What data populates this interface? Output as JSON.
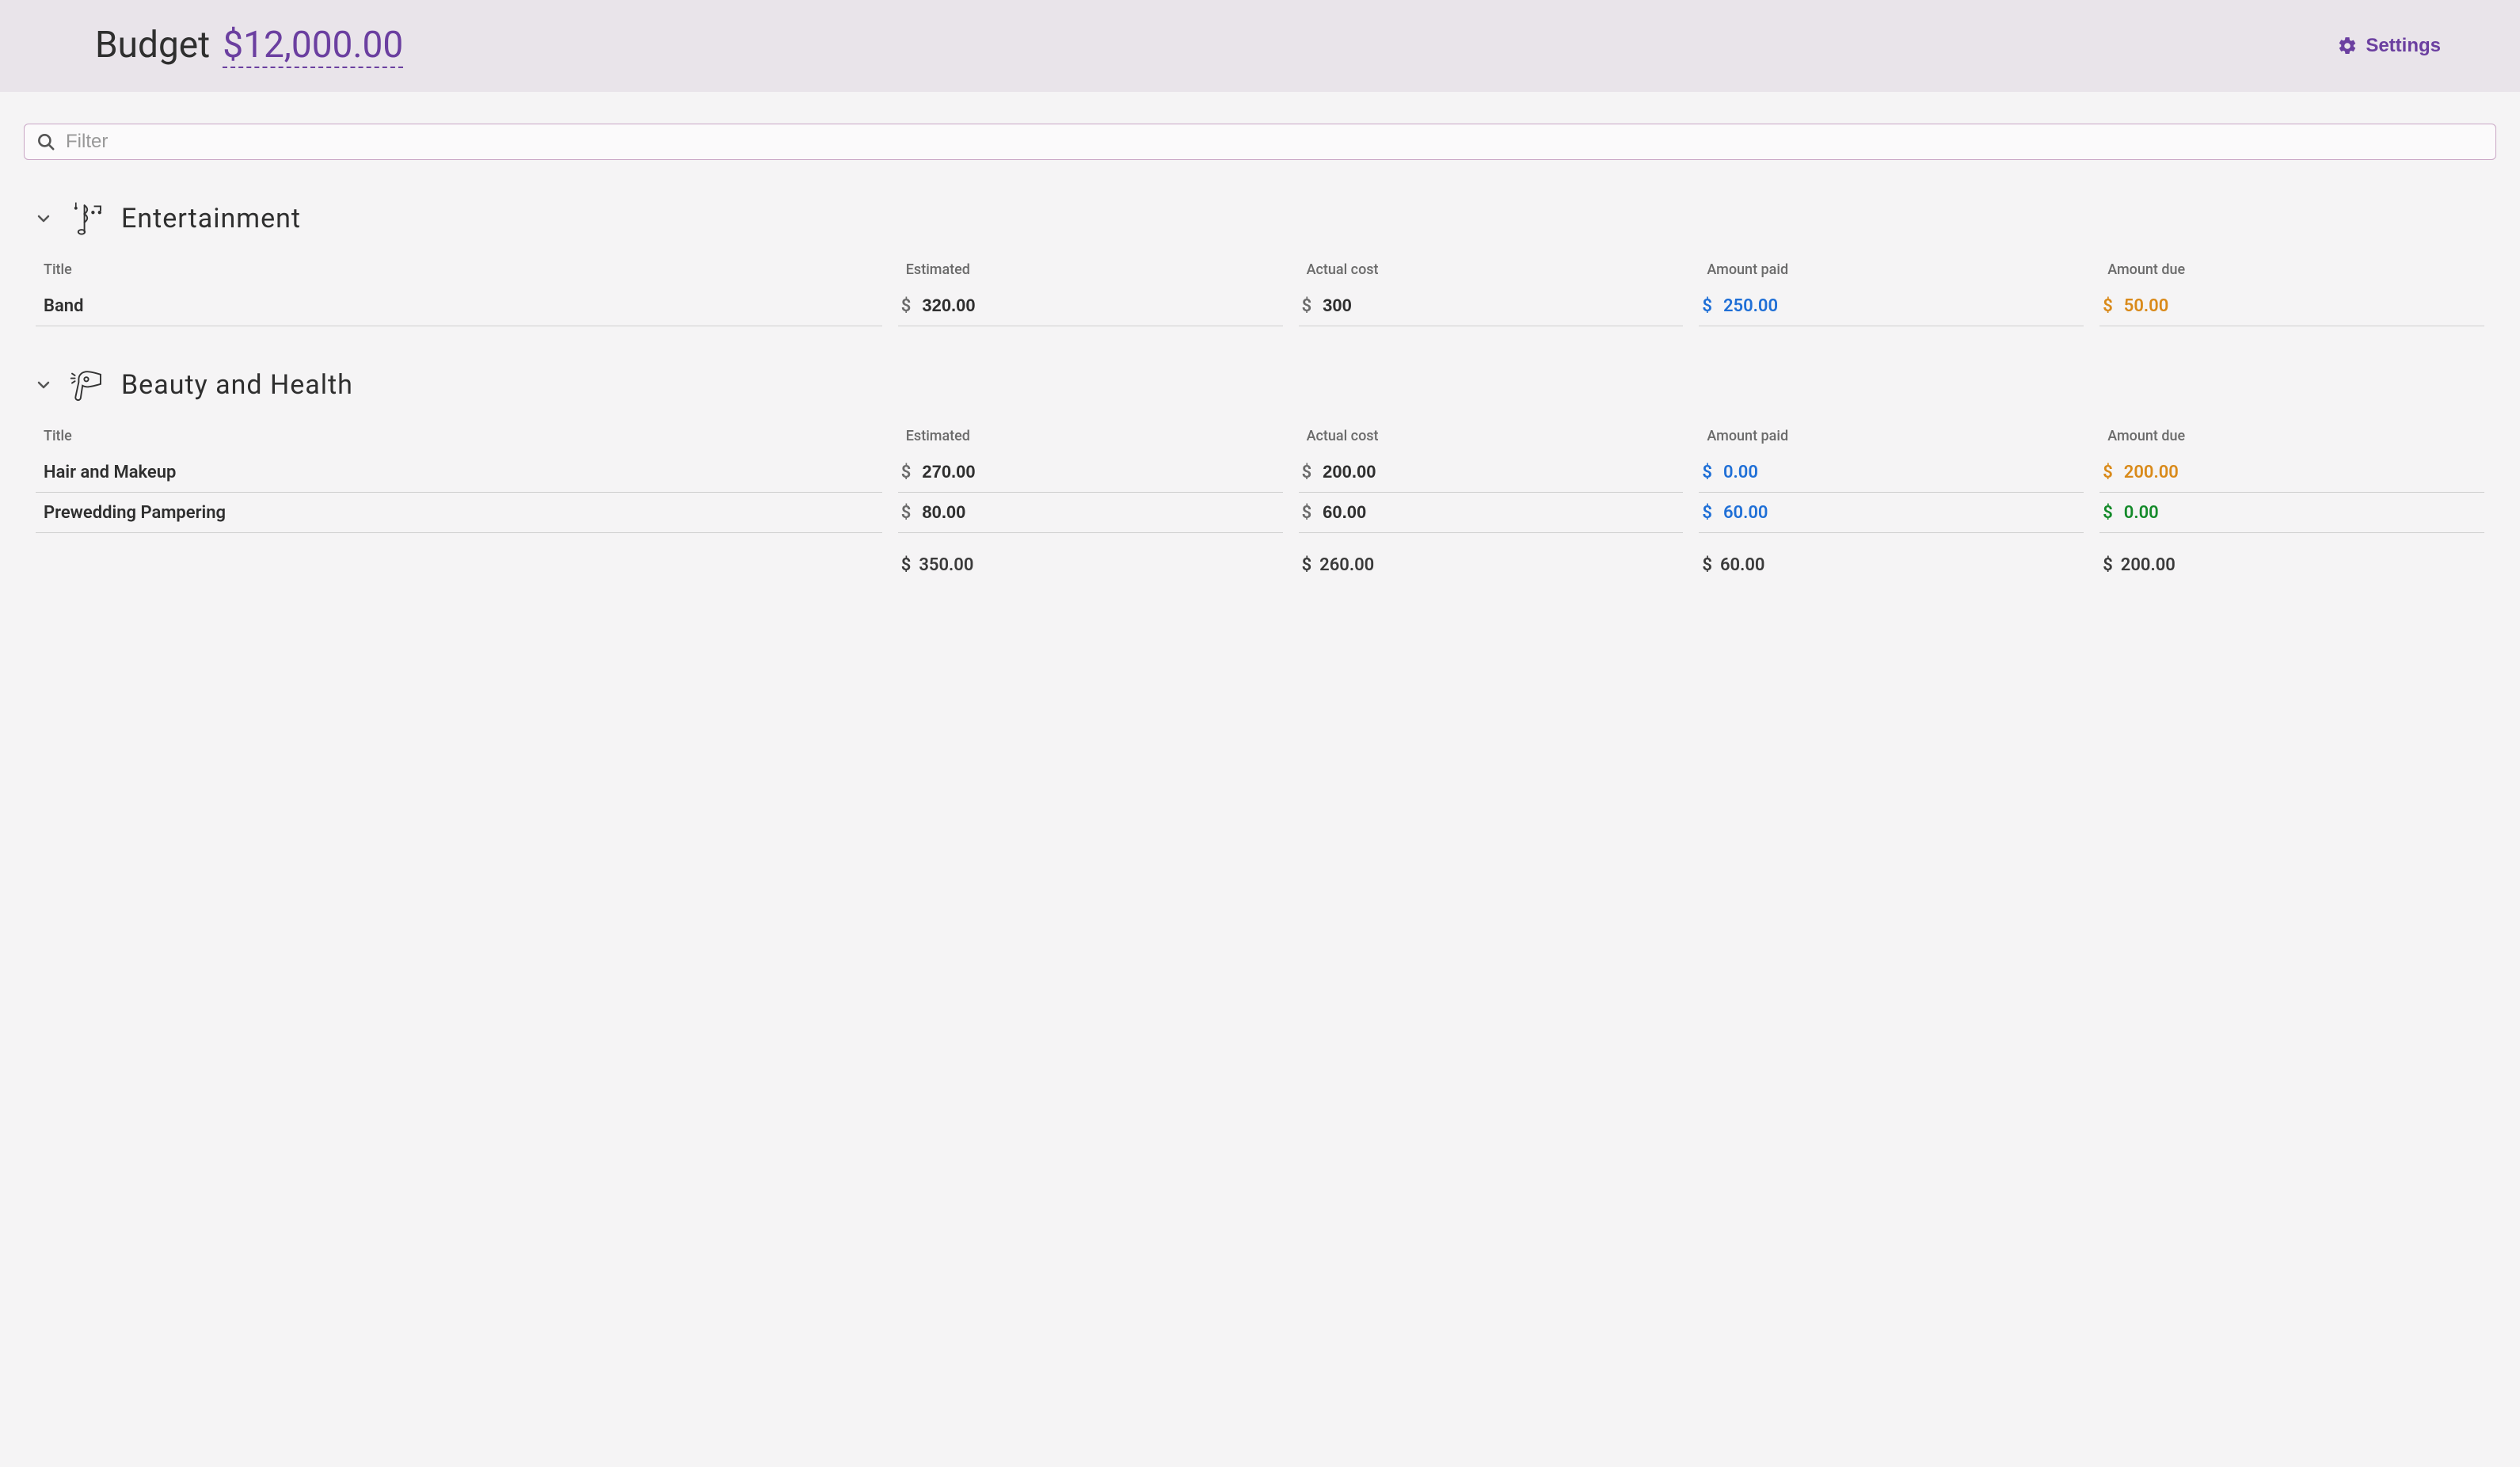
{
  "colors": {
    "header_bg": "#e9e4ea",
    "page_bg": "#f5f4f5",
    "accent_purple": "#6b3fa0",
    "text_dark": "#2f2f2f",
    "text_muted": "#6b6b6b",
    "border_gray": "#cfcfcf",
    "filter_border": "#c9a6c5",
    "paid_blue": "#1f6fd6",
    "due_orange": "#d98a1a",
    "due_green": "#148a2a"
  },
  "header": {
    "budget_label": "Budget",
    "budget_amount": "$12,000.00",
    "settings_label": "Settings"
  },
  "filter": {
    "placeholder": "Filter",
    "value": ""
  },
  "columns": {
    "title": "Title",
    "estimated": "Estimated",
    "actual": "Actual cost",
    "paid": "Amount paid",
    "due": "Amount due"
  },
  "categories": [
    {
      "id": "entertainment",
      "name": "Entertainment",
      "icon": "music",
      "items": [
        {
          "title": "Band",
          "estimated": "320.00",
          "actual": "300",
          "paid": "250.00",
          "due": "50.00",
          "due_color": "#d98a1a"
        }
      ]
    },
    {
      "id": "beauty-health",
      "name": "Beauty and Health",
      "icon": "hairdryer",
      "items": [
        {
          "title": "Hair and Makeup",
          "estimated": "270.00",
          "actual": "200.00",
          "paid": "0.00",
          "due": "200.00",
          "due_color": "#d98a1a"
        },
        {
          "title": "Prewedding Pampering",
          "estimated": "80.00",
          "actual": "60.00",
          "paid": "60.00",
          "due": "0.00",
          "due_color": "#148a2a"
        }
      ],
      "totals": {
        "estimated": "350.00",
        "actual": "260.00",
        "paid": "60.00",
        "due": "200.00"
      }
    }
  ]
}
